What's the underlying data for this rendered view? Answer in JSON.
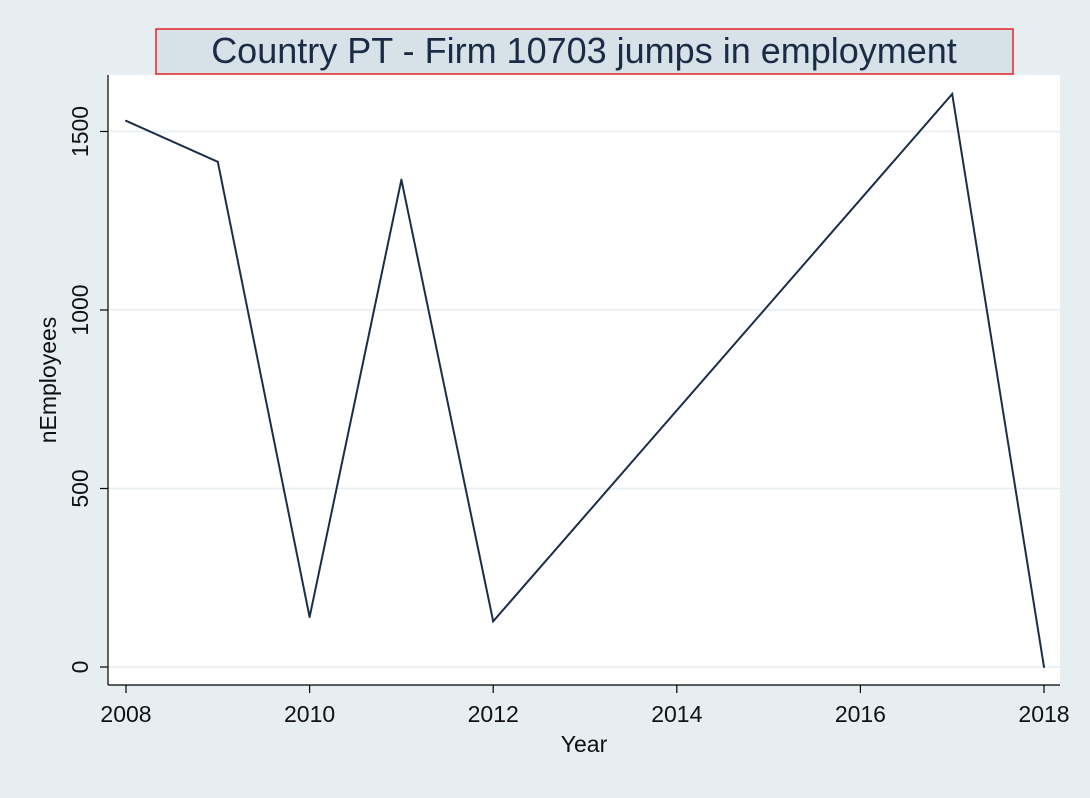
{
  "chart_data": {
    "type": "line",
    "title": "Country PT - Firm 10703  jumps in employment",
    "xlabel": "Year",
    "ylabel": "nEmployees",
    "x": [
      2008,
      2009,
      2010,
      2011,
      2012,
      2017,
      2018
    ],
    "series": [
      {
        "values": [
          1530,
          1415,
          140,
          1365,
          128,
          1605,
          0
        ]
      }
    ],
    "xlim": [
      2008,
      2018
    ],
    "ylim": [
      0,
      1605
    ],
    "xticks": [
      2008,
      2010,
      2012,
      2014,
      2016,
      2018
    ],
    "yticks": [
      0,
      500,
      1000,
      1500
    ],
    "grid": true,
    "colors": {
      "line": "#1a2e48",
      "background": "#e6eef1",
      "plot_background": "#ffffff",
      "title_background": "#d6e1e8",
      "title_border": "#e8202a",
      "grid": "#e6eef1"
    }
  }
}
